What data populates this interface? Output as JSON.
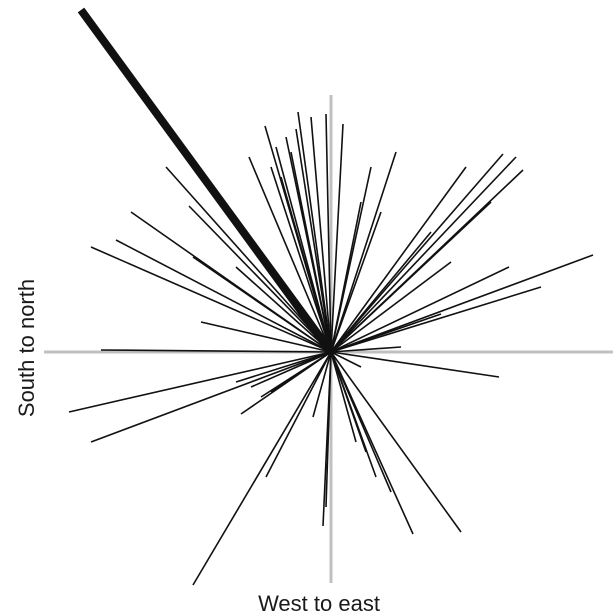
{
  "chart_data": {
    "type": "scatter",
    "title": "",
    "xlabel": "West to east",
    "ylabel": "South to north",
    "axis_color": "#c0c0c0",
    "ray_color": "#111111",
    "origin": [
      0,
      0
    ],
    "xlim": [
      -281,
      281
    ],
    "ylim": [
      -240,
      348
    ],
    "grid": false,
    "vectors": [
      {
        "x": -250,
        "y": 342,
        "weight": 3
      },
      {
        "x": 12,
        "y": 228
      },
      {
        "x": -5,
        "y": 238
      },
      {
        "x": -20,
        "y": 235
      },
      {
        "x": -33,
        "y": 240
      },
      {
        "x": -66,
        "y": 226
      },
      {
        "x": -45,
        "y": 215
      },
      {
        "x": -35,
        "y": 223
      },
      {
        "x": -82,
        "y": 195
      },
      {
        "x": -60,
        "y": 185
      },
      {
        "x": -50,
        "y": 175
      },
      {
        "x": -55,
        "y": 205
      },
      {
        "x": -40,
        "y": 200
      },
      {
        "x": -165,
        "y": 185
      },
      {
        "x": -142,
        "y": 146
      },
      {
        "x": -200,
        "y": 140
      },
      {
        "x": -215,
        "y": 112
      },
      {
        "x": -240,
        "y": 105
      },
      {
        "x": -138,
        "y": 95
      },
      {
        "x": -95,
        "y": 85
      },
      {
        "x": -130,
        "y": 30
      },
      {
        "x": -230,
        "y": 2
      },
      {
        "x": 65,
        "y": 200
      },
      {
        "x": 40,
        "y": 185
      },
      {
        "x": 30,
        "y": 150
      },
      {
        "x": 50,
        "y": 140
      },
      {
        "x": 135,
        "y": 185
      },
      {
        "x": 172,
        "y": 198
      },
      {
        "x": 185,
        "y": 195
      },
      {
        "x": 192,
        "y": 182
      },
      {
        "x": 160,
        "y": 150
      },
      {
        "x": 100,
        "y": 120
      },
      {
        "x": 120,
        "y": 90
      },
      {
        "x": 262,
        "y": 97
      },
      {
        "x": 178,
        "y": 85
      },
      {
        "x": 210,
        "y": 65
      },
      {
        "x": 110,
        "y": 38
      },
      {
        "x": 70,
        "y": 5
      },
      {
        "x": 168,
        "y": -25
      },
      {
        "x": 30,
        "y": -15
      },
      {
        "x": -262,
        "y": -60
      },
      {
        "x": -240,
        "y": -90
      },
      {
        "x": -95,
        "y": -30
      },
      {
        "x": -80,
        "y": -35
      },
      {
        "x": -90,
        "y": -62
      },
      {
        "x": -70,
        "y": -45
      },
      {
        "x": -60,
        "y": -40
      },
      {
        "x": -65,
        "y": -125
      },
      {
        "x": -138,
        "y": -233
      },
      {
        "x": -8,
        "y": -174
      },
      {
        "x": -5,
        "y": -155
      },
      {
        "x": -18,
        "y": -65
      },
      {
        "x": 45,
        "y": -125
      },
      {
        "x": 60,
        "y": -140
      },
      {
        "x": 82,
        "y": -182
      },
      {
        "x": 130,
        "y": -180
      },
      {
        "x": 25,
        "y": -90
      },
      {
        "x": 35,
        "y": -100
      }
    ]
  }
}
